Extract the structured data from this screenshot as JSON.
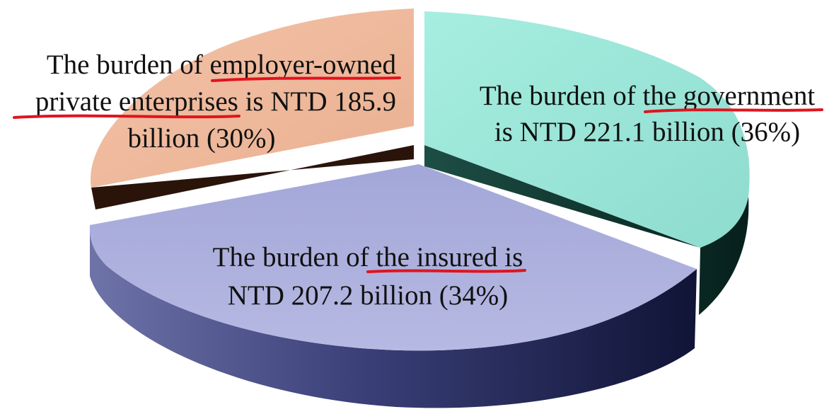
{
  "chart_data": {
    "type": "pie",
    "style": "3d-exploded",
    "unit": "NTD billion",
    "slices": [
      {
        "key": "government",
        "value": 221.1,
        "percent": 36,
        "color": "#97e6d8",
        "side_color": "#0f3a32",
        "label_lines": [
          "The burden of the government",
          "is NTD 221.1 billion (36%)"
        ],
        "underlined": "the government"
      },
      {
        "key": "insured",
        "value": 207.2,
        "percent": 34,
        "color": "#a9acda",
        "side_color": "#2c3060",
        "label_lines": [
          "The burden of the insured is",
          "NTD 207.2 billion (34%)"
        ],
        "underlined": "the insured is"
      },
      {
        "key": "employer",
        "value": 185.9,
        "percent": 30,
        "color": "#f0b89c",
        "side_color": "#2a140a",
        "label_lines": [
          "The burden of employer-owned",
          "private enterprises is NTD 185.9",
          "billion (30%)"
        ],
        "underlined": "employer-owned / private enterprises"
      }
    ]
  },
  "colors": {
    "underline": "#e0141e",
    "text": "#111111",
    "background": "#ffffff"
  }
}
